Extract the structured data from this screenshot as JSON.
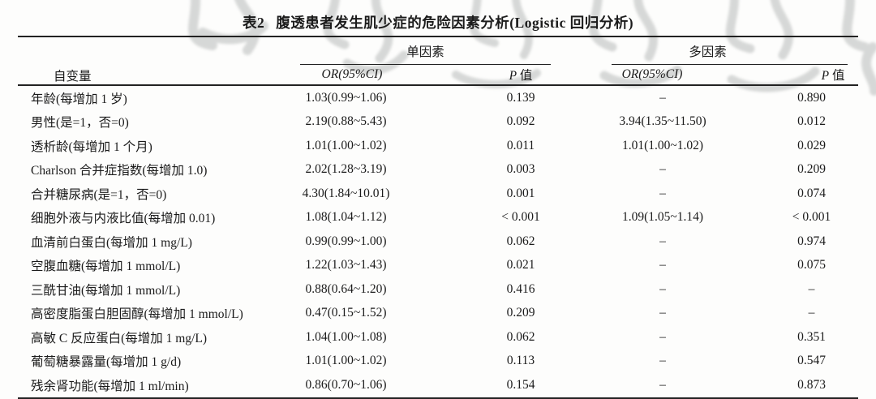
{
  "colors": {
    "text": "#1b1b1b",
    "rule": "#222222",
    "watermark": "#a8acab",
    "background": "#fdfdfc"
  },
  "title": {
    "tag": "表2",
    "text": "腹透患者发生肌少症的危险因素分析(Logistic 回归分析)"
  },
  "table": {
    "headers": {
      "variable": "自变量",
      "group_univariate": "单因素",
      "group_multivariate": "多因素",
      "or_label": "OR(95%CI)",
      "p_italic": "P",
      "p_text": " 值"
    },
    "rows": [
      {
        "label": "年龄(每增加 1 岁)",
        "uni_or": "1.03(0.99~1.06)",
        "uni_p": "0.139",
        "multi_or": "–",
        "multi_p": "0.890"
      },
      {
        "label": "男性(是=1，否=0)",
        "uni_or": "2.19(0.88~5.43)",
        "uni_p": "0.092",
        "multi_or": "3.94(1.35~11.50)",
        "multi_p": "0.012"
      },
      {
        "label": "透析龄(每增加 1 个月)",
        "uni_or": "1.01(1.00~1.02)",
        "uni_p": "0.011",
        "multi_or": "1.01(1.00~1.02)",
        "multi_p": "0.029"
      },
      {
        "label": "Charlson 合并症指数(每增加 1.0)",
        "uni_or": "2.02(1.28~3.19)",
        "uni_p": "0.003",
        "multi_or": "–",
        "multi_p": "0.209"
      },
      {
        "label": "合并糖尿病(是=1，否=0)",
        "uni_or": "4.30(1.84~10.01)",
        "uni_p": "0.001",
        "multi_or": "–",
        "multi_p": "0.074"
      },
      {
        "label": "细胞外液与内液比值(每增加 0.01)",
        "uni_or": "1.08(1.04~1.12)",
        "uni_p": "< 0.001",
        "multi_or": "1.09(1.05~1.14)",
        "multi_p": "< 0.001"
      },
      {
        "label": "血清前白蛋白(每增加 1 mg/L)",
        "uni_or": "0.99(0.99~1.00)",
        "uni_p": "0.062",
        "multi_or": "–",
        "multi_p": "0.974"
      },
      {
        "label": "空腹血糖(每增加 1 mmol/L)",
        "uni_or": "1.22(1.03~1.43)",
        "uni_p": "0.021",
        "multi_or": "–",
        "multi_p": "0.075"
      },
      {
        "label": "三酰甘油(每增加 1 mmol/L)",
        "uni_or": "0.88(0.64~1.20)",
        "uni_p": "0.416",
        "multi_or": "–",
        "multi_p": "–"
      },
      {
        "label": "高密度脂蛋白胆固醇(每增加 1 mmol/L)",
        "uni_or": "0.47(0.15~1.52)",
        "uni_p": "0.209",
        "multi_or": "–",
        "multi_p": "–"
      },
      {
        "label": "高敏 C 反应蛋白(每增加 1 mg/L)",
        "uni_or": "1.04(1.00~1.08)",
        "uni_p": "0.062",
        "multi_or": "–",
        "multi_p": "0.351"
      },
      {
        "label": "葡萄糖暴露量(每增加 1 g/d)",
        "uni_or": "1.01(1.00~1.02)",
        "uni_p": "0.113",
        "multi_or": "–",
        "multi_p": "0.547"
      },
      {
        "label": "残余肾功能(每增加 1 ml/min)",
        "uni_or": "0.86(0.70~1.06)",
        "uni_p": "0.154",
        "multi_or": "–",
        "multi_p": "0.873"
      }
    ]
  }
}
